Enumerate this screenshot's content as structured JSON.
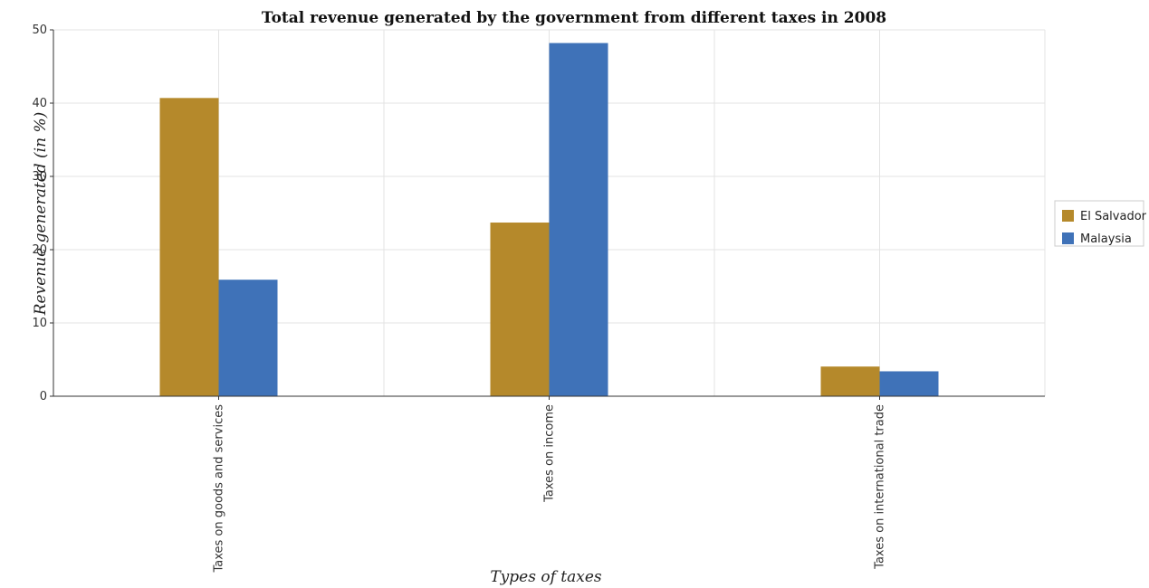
{
  "chart_data": {
    "type": "bar",
    "title": "Total revenue generated by the government from different taxes in 2008",
    "xlabel": "Types of taxes",
    "ylabel": "Revenue generated (in %)",
    "categories": [
      "Taxes on goods and services",
      "Taxes on income",
      "Taxes on international trade"
    ],
    "ylim": [
      0,
      50
    ],
    "yticks": [
      0,
      10,
      20,
      30,
      40,
      50
    ],
    "grid": true,
    "legend_position": "right",
    "series": [
      {
        "name": "El Salvador",
        "color": "#b5892b",
        "values": [
          40.7,
          23.7,
          4.05
        ]
      },
      {
        "name": "Malaysia",
        "color": "#3f72b8",
        "values": [
          15.9,
          48.2,
          3.4
        ]
      }
    ]
  }
}
